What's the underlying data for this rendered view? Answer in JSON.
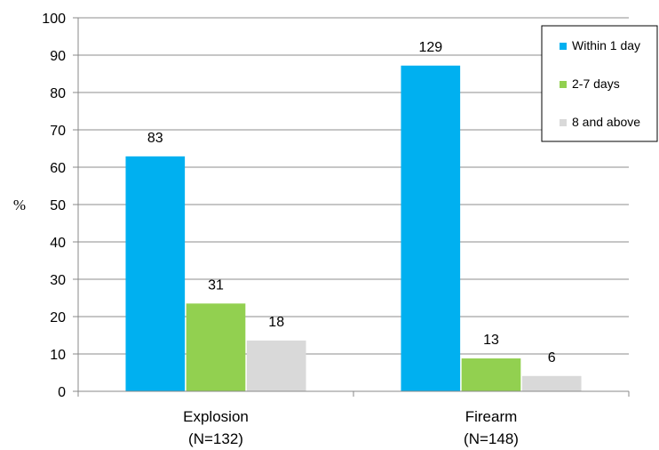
{
  "chart_data": {
    "type": "bar",
    "title": "",
    "xlabel": "",
    "ylabel": "%",
    "ylim": [
      0,
      100
    ],
    "yticks": [
      0,
      10,
      20,
      30,
      40,
      50,
      60,
      70,
      80,
      90,
      100
    ],
    "grid": true,
    "legend_position": "top-right",
    "categories": [
      {
        "name": "Explosion",
        "sub": "(N=132)"
      },
      {
        "name": "Firearm",
        "sub": "(N=148)"
      }
    ],
    "series": [
      {
        "name": "Within 1 day",
        "color": "#00b0f0",
        "values": [
          62.9,
          87.2
        ],
        "labels": [
          "83",
          "129"
        ]
      },
      {
        "name": "2-7 days",
        "color": "#92d050",
        "values": [
          23.5,
          8.8
        ],
        "labels": [
          "31",
          "13"
        ]
      },
      {
        "name": "8 and above",
        "color": "#d9d9d9",
        "values": [
          13.6,
          4.1
        ],
        "labels": [
          "18",
          "6"
        ]
      }
    ]
  }
}
